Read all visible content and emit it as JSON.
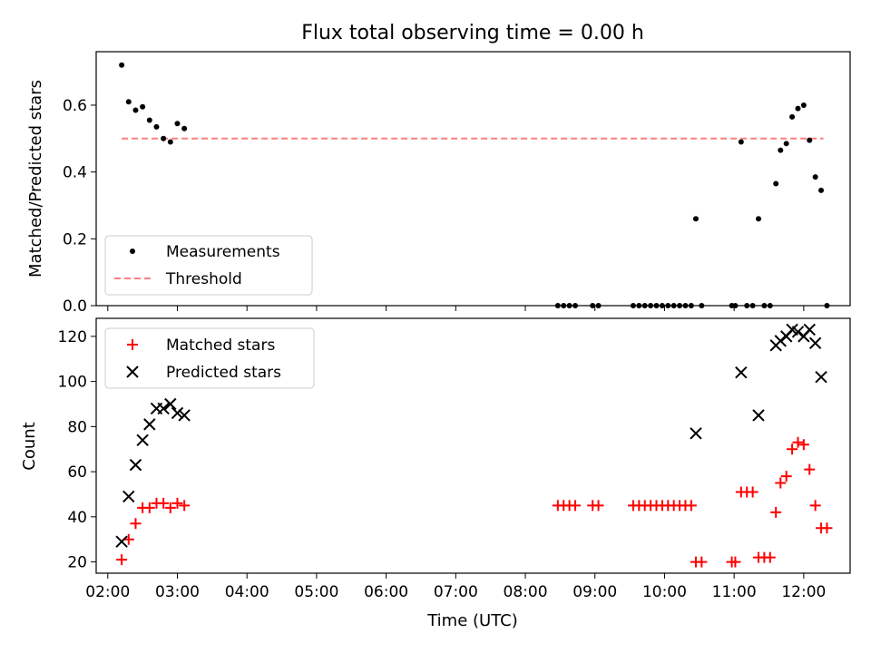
{
  "title": "Flux total observing time = 0.00 h",
  "chart_data": [
    {
      "panel": "top",
      "type": "scatter",
      "ylabel": "Matched/Predicted stars",
      "ylim": [
        0,
        0.76
      ],
      "yticks": [
        0.0,
        0.2,
        0.4,
        0.6
      ],
      "yticklabels": [
        "0.0",
        "0.2",
        "0.4",
        "0.6"
      ],
      "xticklabels": [],
      "legend": {
        "placement": "lower-left",
        "entries": [
          "Measurements",
          "Threshold"
        ]
      },
      "threshold": {
        "name": "Threshold",
        "value": 0.5,
        "x_range": [
          "02:12",
          "12:17"
        ],
        "color": "#ff7f7f",
        "style": "dashed"
      },
      "series": [
        {
          "name": "Measurements",
          "color": "#000000",
          "marker": "dot",
          "points": [
            [
              "02:12",
              0.72
            ],
            [
              "02:18",
              0.61
            ],
            [
              "02:24",
              0.585
            ],
            [
              "02:30",
              0.595
            ],
            [
              "02:36",
              0.555
            ],
            [
              "02:42",
              0.535
            ],
            [
              "02:48",
              0.5
            ],
            [
              "02:54",
              0.49
            ],
            [
              "03:00",
              0.545
            ],
            [
              "03:06",
              0.53
            ],
            [
              "08:28",
              0.0
            ],
            [
              "08:33",
              0.0
            ],
            [
              "08:38",
              0.0
            ],
            [
              "08:43",
              0.0
            ],
            [
              "08:58",
              0.0
            ],
            [
              "09:03",
              0.0
            ],
            [
              "09:33",
              0.0
            ],
            [
              "09:38",
              0.0
            ],
            [
              "09:43",
              0.0
            ],
            [
              "09:48",
              0.0
            ],
            [
              "09:53",
              0.0
            ],
            [
              "09:58",
              0.0
            ],
            [
              "10:03",
              0.0
            ],
            [
              "10:08",
              0.0
            ],
            [
              "10:13",
              0.0
            ],
            [
              "10:18",
              0.0
            ],
            [
              "10:23",
              0.0
            ],
            [
              "10:27",
              0.26
            ],
            [
              "10:32",
              0.0
            ],
            [
              "10:58",
              0.0
            ],
            [
              "11:01",
              0.0
            ],
            [
              "11:06",
              0.49
            ],
            [
              "11:11",
              0.0
            ],
            [
              "11:16",
              0.0
            ],
            [
              "11:21",
              0.26
            ],
            [
              "11:26",
              0.0
            ],
            [
              "11:31",
              0.0
            ],
            [
              "11:36",
              0.365
            ],
            [
              "11:40",
              0.465
            ],
            [
              "11:45",
              0.485
            ],
            [
              "11:50",
              0.565
            ],
            [
              "11:55",
              0.59
            ],
            [
              "12:00",
              0.6
            ],
            [
              "12:05",
              0.495
            ],
            [
              "12:10",
              0.385
            ],
            [
              "12:15",
              0.345
            ],
            [
              "12:20",
              0.0
            ]
          ]
        }
      ]
    },
    {
      "panel": "bottom",
      "type": "scatter",
      "xlabel": "Time (UTC)",
      "ylabel": "Count",
      "ylim": [
        15,
        128
      ],
      "yticks": [
        20,
        40,
        60,
        80,
        100,
        120
      ],
      "yticklabels": [
        "20",
        "40",
        "60",
        "80",
        "100",
        "120"
      ],
      "xlim": [
        "01:50",
        "12:40"
      ],
      "xticks": [
        "02:00",
        "03:00",
        "04:00",
        "05:00",
        "06:00",
        "07:00",
        "08:00",
        "09:00",
        "10:00",
        "11:00",
        "12:00"
      ],
      "xticklabels": [
        "02:00",
        "03:00",
        "04:00",
        "05:00",
        "06:00",
        "07:00",
        "08:00",
        "09:00",
        "10:00",
        "11:00",
        "12:00"
      ],
      "legend": {
        "placement": "upper-left",
        "entries": [
          "Matched stars",
          "Predicted stars"
        ]
      },
      "series": [
        {
          "name": "Matched stars",
          "color": "#ff0000",
          "marker": "plus",
          "points": [
            [
              "02:12",
              21
            ],
            [
              "02:18",
              30
            ],
            [
              "02:24",
              37
            ],
            [
              "02:30",
              44
            ],
            [
              "02:36",
              44
            ],
            [
              "02:42",
              46
            ],
            [
              "02:48",
              46
            ],
            [
              "02:54",
              44
            ],
            [
              "03:00",
              46
            ],
            [
              "03:06",
              45
            ],
            [
              "08:28",
              45
            ],
            [
              "08:33",
              45
            ],
            [
              "08:38",
              45
            ],
            [
              "08:43",
              45
            ],
            [
              "08:58",
              45
            ],
            [
              "09:03",
              45
            ],
            [
              "09:33",
              45
            ],
            [
              "09:38",
              45
            ],
            [
              "09:43",
              45
            ],
            [
              "09:48",
              45
            ],
            [
              "09:53",
              45
            ],
            [
              "09:58",
              45
            ],
            [
              "10:03",
              45
            ],
            [
              "10:08",
              45
            ],
            [
              "10:13",
              45
            ],
            [
              "10:18",
              45
            ],
            [
              "10:23",
              45
            ],
            [
              "10:27",
              20
            ],
            [
              "10:32",
              20
            ],
            [
              "10:58",
              20
            ],
            [
              "11:01",
              20
            ],
            [
              "11:06",
              51
            ],
            [
              "11:11",
              51
            ],
            [
              "11:16",
              51
            ],
            [
              "11:21",
              22
            ],
            [
              "11:26",
              22
            ],
            [
              "11:31",
              22
            ],
            [
              "11:36",
              42
            ],
            [
              "11:40",
              55
            ],
            [
              "11:45",
              58
            ],
            [
              "11:50",
              70
            ],
            [
              "11:55",
              73
            ],
            [
              "12:00",
              72
            ],
            [
              "12:05",
              61
            ],
            [
              "12:10",
              45
            ],
            [
              "12:15",
              35
            ],
            [
              "12:20",
              35
            ]
          ]
        },
        {
          "name": "Predicted stars",
          "color": "#000000",
          "marker": "x",
          "points": [
            [
              "02:12",
              29
            ],
            [
              "02:18",
              49
            ],
            [
              "02:24",
              63
            ],
            [
              "02:30",
              74
            ],
            [
              "02:36",
              81
            ],
            [
              "02:42",
              88
            ],
            [
              "02:48",
              88
            ],
            [
              "02:54",
              90
            ],
            [
              "03:00",
              86
            ],
            [
              "03:06",
              85
            ],
            [
              "10:27",
              77
            ],
            [
              "11:06",
              104
            ],
            [
              "11:21",
              85
            ],
            [
              "11:36",
              116
            ],
            [
              "11:40",
              118
            ],
            [
              "11:45",
              120
            ],
            [
              "11:50",
              123
            ],
            [
              "11:55",
              122
            ],
            [
              "12:00",
              120
            ],
            [
              "12:05",
              123
            ],
            [
              "12:10",
              117
            ],
            [
              "12:15",
              102
            ]
          ]
        }
      ]
    }
  ]
}
